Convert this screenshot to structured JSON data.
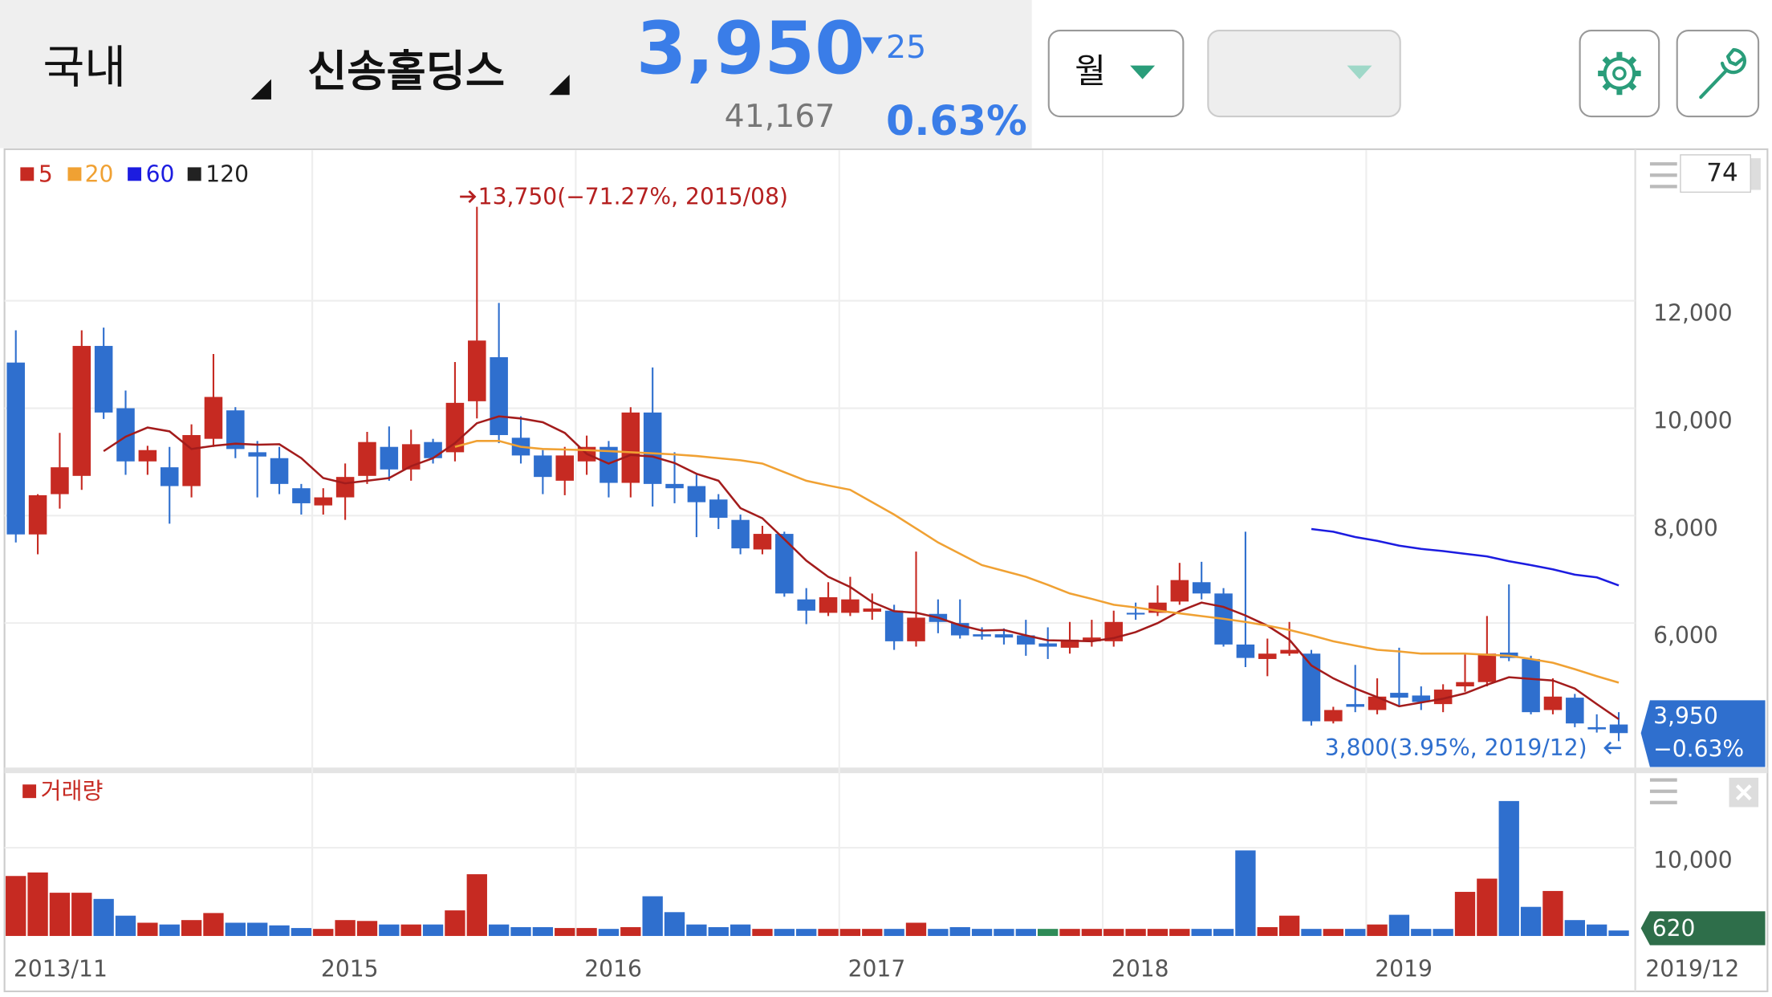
{
  "header": {
    "market": "국내",
    "stock_name": "신송홀딩스",
    "price": "3,950",
    "change": "25",
    "volume": "41,167",
    "change_rate": "0.63%",
    "period": "월"
  },
  "chart_data": [
    {
      "type": "candlestick",
      "visible_count": "74",
      "up_color": "#c62a22",
      "down_color": "#2f6fce",
      "ylim": [
        3330,
        14760
      ],
      "yticks": [
        {
          "value": 12000,
          "label": "12,000"
        },
        {
          "value": 10000,
          "label": "10,000"
        },
        {
          "value": 8000,
          "label": "8,000"
        },
        {
          "value": 6000,
          "label": "6,000"
        }
      ],
      "grid": true,
      "ohlc": {
        "open": [
          10850,
          7650,
          8400,
          8740,
          11160,
          10000,
          9010,
          8900,
          8550,
          9430,
          9960,
          9180,
          9070,
          8510,
          8190,
          8340,
          8740,
          9280,
          8860,
          9370,
          9180,
          10130,
          10950,
          9450,
          9120,
          8650,
          9010,
          9280,
          8610,
          9920,
          8590,
          8550,
          8300,
          7920,
          7370,
          7660,
          6440,
          6190,
          6190,
          6210,
          6230,
          5660,
          6170,
          6000,
          5790,
          5790,
          5770,
          5620,
          5540,
          5660,
          5660,
          6190,
          6190,
          6400,
          6760,
          6550,
          5600,
          5330,
          5430,
          5430,
          4170,
          4490,
          4380,
          4700,
          4650,
          4490,
          4820,
          4900,
          5450,
          5330,
          4380,
          4610,
          4060,
          4110
        ],
        "high": [
          11450,
          8400,
          9540,
          11450,
          11500,
          10330,
          9300,
          9280,
          9700,
          11010,
          10020,
          9390,
          9280,
          8590,
          8510,
          8970,
          9560,
          9660,
          9600,
          9430,
          10860,
          13750,
          11960,
          9850,
          9220,
          9280,
          9490,
          9390,
          10020,
          10760,
          9180,
          8760,
          8400,
          8020,
          7810,
          7700,
          6650,
          6760,
          6860,
          6550,
          6340,
          7330,
          6440,
          6440,
          5920,
          5900,
          6060,
          5920,
          6020,
          6060,
          6230,
          6380,
          6700,
          7120,
          7140,
          6650,
          7700,
          5710,
          6020,
          5500,
          4440,
          5220,
          4970,
          5540,
          4820,
          4860,
          5430,
          6130,
          6720,
          5390,
          4970,
          4680,
          4300,
          4340
        ],
        "low": [
          7500,
          7280,
          8130,
          8480,
          9800,
          8760,
          8760,
          7850,
          8340,
          9280,
          9070,
          8340,
          8400,
          8020,
          8020,
          7920,
          8590,
          8650,
          8650,
          8970,
          9010,
          9810,
          9350,
          8970,
          8400,
          8380,
          8760,
          8340,
          8340,
          8170,
          8230,
          7600,
          7750,
          7280,
          7280,
          6490,
          5980,
          6130,
          6130,
          6060,
          5500,
          5560,
          5810,
          5710,
          5690,
          5600,
          5390,
          5330,
          5430,
          5560,
          5560,
          6060,
          6130,
          6340,
          6440,
          5560,
          5180,
          5010,
          5390,
          4090,
          4130,
          4340,
          4300,
          4440,
          4380,
          4340,
          4720,
          4820,
          5290,
          4300,
          4300,
          4060,
          3960,
          3800
        ],
        "close": [
          7650,
          8380,
          8900,
          11160,
          9920,
          9010,
          9220,
          8550,
          9500,
          10210,
          9240,
          9100,
          8590,
          8230,
          8340,
          8720,
          9370,
          8860,
          9330,
          9070,
          10100,
          11260,
          9500,
          9120,
          8720,
          9120,
          9280,
          8610,
          9920,
          8590,
          8510,
          8250,
          7960,
          7390,
          7660,
          6550,
          6230,
          6480,
          6440,
          6270,
          5660,
          6100,
          6020,
          5770,
          5750,
          5730,
          5600,
          5560,
          5690,
          5730,
          6020,
          6170,
          6380,
          6800,
          6550,
          5600,
          5350,
          5430,
          5500,
          4170,
          4380,
          4440,
          4630,
          4610,
          4530,
          4760,
          4900,
          5430,
          5350,
          4340,
          4630,
          4130,
          4020,
          3950
        ]
      },
      "series": [
        {
          "name": "5",
          "color": "#a31c1c",
          "values": [
            null,
            null,
            null,
            null,
            9200,
            9470,
            9640,
            9570,
            9240,
            9300,
            9340,
            9320,
            9330,
            9070,
            8700,
            8600,
            8650,
            8700,
            8920,
            9070,
            9350,
            9720,
            9850,
            9810,
            9740,
            9540,
            9150,
            8970,
            9130,
            9100,
            8980,
            8780,
            8650,
            8140,
            7950,
            7560,
            7160,
            6860,
            6670,
            6390,
            6220,
            6190,
            6100,
            5960,
            5860,
            5870,
            5770,
            5680,
            5670,
            5660,
            5720,
            5830,
            6000,
            6220,
            6380,
            6300,
            6140,
            5950,
            5690,
            5210,
            4970,
            4780,
            4620,
            4450,
            4520,
            4590,
            4690,
            4850,
            4990,
            4960,
            4930,
            4780,
            4490,
            4210
          ]
        },
        {
          "name": "20",
          "color": "#f0a133",
          "values": [
            null,
            null,
            null,
            null,
            null,
            null,
            null,
            null,
            null,
            null,
            null,
            null,
            null,
            null,
            null,
            null,
            null,
            null,
            null,
            null,
            9280,
            9390,
            9390,
            9280,
            9240,
            9230,
            9220,
            9200,
            9180,
            9160,
            9140,
            9110,
            9070,
            9030,
            8970,
            8810,
            8650,
            8560,
            8480,
            8250,
            8020,
            7760,
            7500,
            7290,
            7080,
            6970,
            6860,
            6710,
            6550,
            6450,
            6340,
            6290,
            6230,
            6180,
            6130,
            6080,
            6020,
            5950,
            5870,
            5770,
            5660,
            5580,
            5500,
            5470,
            5430,
            5430,
            5430,
            5410,
            5390,
            5330,
            5260,
            5140,
            5010,
            4890
          ]
        },
        {
          "name": "60",
          "color": "#1c1ce0",
          "values": [
            null,
            null,
            null,
            null,
            null,
            null,
            null,
            null,
            null,
            null,
            null,
            null,
            null,
            null,
            null,
            null,
            null,
            null,
            null,
            null,
            null,
            null,
            null,
            null,
            null,
            null,
            null,
            null,
            null,
            null,
            null,
            null,
            null,
            null,
            null,
            null,
            null,
            null,
            null,
            null,
            null,
            null,
            null,
            null,
            null,
            null,
            null,
            null,
            null,
            null,
            null,
            null,
            null,
            null,
            null,
            null,
            null,
            null,
            null,
            7750,
            7700,
            7600,
            7530,
            7440,
            7380,
            7340,
            7290,
            7240,
            7150,
            7080,
            7000,
            6900,
            6850,
            6700
          ]
        },
        {
          "name": "120",
          "color": "#222222",
          "values": [
            null,
            null,
            null,
            null,
            null,
            null,
            null,
            null,
            null,
            null,
            null,
            null,
            null,
            null,
            null,
            null,
            null,
            null,
            null,
            null,
            null,
            null,
            null,
            null,
            null,
            null,
            null,
            null,
            null,
            null,
            null,
            null,
            null,
            null,
            null,
            null,
            null,
            null,
            null,
            null,
            null,
            null,
            null,
            null,
            null,
            null,
            null,
            null,
            null,
            null,
            null,
            null,
            null,
            null,
            null,
            null,
            null,
            null,
            null,
            null,
            null,
            null,
            null,
            null,
            null,
            null,
            null,
            null,
            null,
            null,
            null,
            null,
            null,
            null
          ]
        }
      ],
      "max_label": "13,750(−71.27%, 2015/08)",
      "min_label": "3,800(3.95%, 2019/12)",
      "last_close_label": "3,950",
      "last_change_label": "−0.63%"
    },
    {
      "type": "bar",
      "title": "거래량",
      "title_color": "#c62a22",
      "categories": [
        "2013/11",
        null,
        null,
        null,
        null,
        null,
        null,
        null,
        null,
        null,
        null,
        null,
        null,
        null,
        "2015",
        null,
        null,
        null,
        null,
        null,
        null,
        null,
        null,
        null,
        null,
        null,
        "2016",
        null,
        null,
        null,
        null,
        null,
        null,
        null,
        null,
        null,
        null,
        null,
        "2017",
        null,
        null,
        null,
        null,
        null,
        null,
        null,
        null,
        null,
        null,
        null,
        "2018",
        null,
        null,
        null,
        null,
        null,
        null,
        null,
        null,
        null,
        null,
        null,
        "2019",
        null,
        null,
        null,
        null,
        null,
        null,
        null,
        null,
        null,
        null,
        "2019/12"
      ],
      "values": [
        6800,
        7200,
        4900,
        4900,
        4200,
        2300,
        1500,
        1300,
        1800,
        2600,
        1500,
        1500,
        1200,
        900,
        800,
        1800,
        1700,
        1300,
        1300,
        1300,
        2900,
        7000,
        1300,
        1000,
        1000,
        900,
        900,
        800,
        1000,
        4500,
        2700,
        1300,
        1000,
        1300,
        800,
        800,
        800,
        800,
        800,
        800,
        800,
        1500,
        800,
        1000,
        800,
        800,
        800,
        800,
        800,
        800,
        800,
        800,
        800,
        800,
        800,
        800,
        9700,
        1000,
        2300,
        800,
        800,
        800,
        1300,
        2400,
        800,
        800,
        5000,
        6500,
        15300,
        3300,
        5100,
        1800,
        1300,
        620
      ],
      "colors": [
        "#c62a22",
        "#c62a22",
        "#c62a22",
        "#c62a22",
        "#2f6fce",
        "#2f6fce",
        "#c62a22",
        "#2f6fce",
        "#c62a22",
        "#c62a22",
        "#2f6fce",
        "#2f6fce",
        "#2f6fce",
        "#2f6fce",
        "#c62a22",
        "#c62a22",
        "#c62a22",
        "#2f6fce",
        "#c62a22",
        "#2f6fce",
        "#c62a22",
        "#c62a22",
        "#2f6fce",
        "#2f6fce",
        "#2f6fce",
        "#c62a22",
        "#c62a22",
        "#2f6fce",
        "#c62a22",
        "#2f6fce",
        "#2f6fce",
        "#2f6fce",
        "#2f6fce",
        "#2f6fce",
        "#c62a22",
        "#2f6fce",
        "#2f6fce",
        "#c62a22",
        "#c62a22",
        "#c62a22",
        "#2f6fce",
        "#c62a22",
        "#2f6fce",
        "#2f6fce",
        "#2f6fce",
        "#2f6fce",
        "#2f6fce",
        "#2e8b57",
        "#c62a22",
        "#c62a22",
        "#c62a22",
        "#c62a22",
        "#c62a22",
        "#c62a22",
        "#2f6fce",
        "#2f6fce",
        "#2f6fce",
        "#c62a22",
        "#c62a22",
        "#2f6fce",
        "#c62a22",
        "#2f6fce",
        "#c62a22",
        "#2f6fce",
        "#2f6fce",
        "#2f6fce",
        "#c62a22",
        "#c62a22",
        "#2f6fce",
        "#2f6fce",
        "#c62a22",
        "#2f6fce",
        "#2f6fce",
        "#2f6fce"
      ],
      "ylim": [
        0,
        18330
      ],
      "yticks": [
        {
          "value": 10000,
          "label": "10,000"
        }
      ],
      "grid": true,
      "last_value_label": "620"
    }
  ]
}
